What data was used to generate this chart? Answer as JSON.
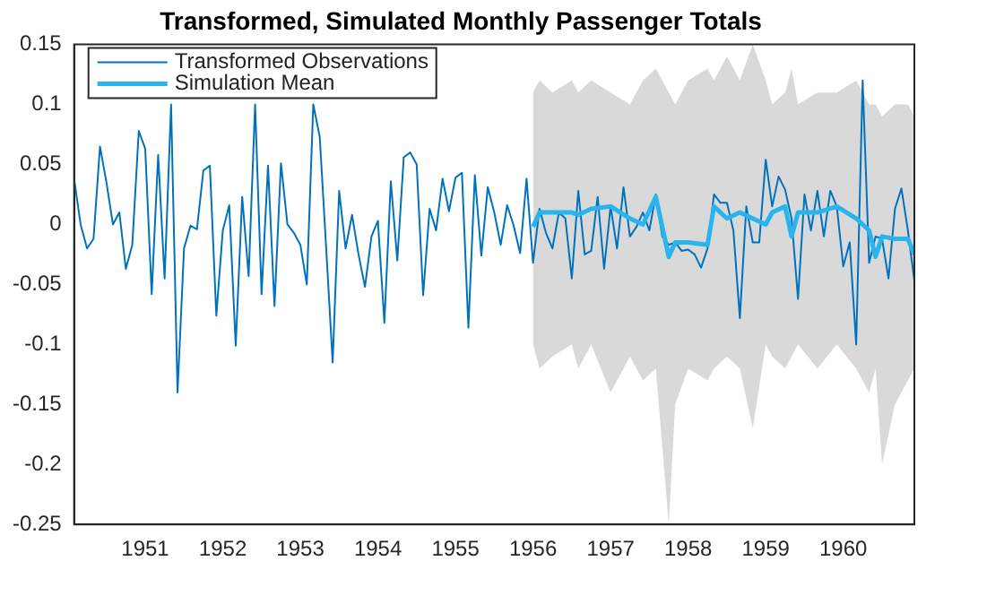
{
  "chart_data": {
    "type": "line",
    "title": "Transformed, Simulated Monthly Passenger Totals",
    "xlim": [
      "1950-02",
      "1960-12"
    ],
    "xticks": [
      "1951",
      "1952",
      "1953",
      "1954",
      "1955",
      "1956",
      "1957",
      "1958",
      "1959",
      "1960"
    ],
    "ylim": [
      -0.25,
      0.15
    ],
    "yticks": [
      -0.25,
      -0.2,
      -0.15,
      -0.1,
      -0.05,
      0,
      0.05,
      0.1,
      0.15
    ],
    "grid": false,
    "legend": "top left",
    "series": [
      {
        "name": "Transformed Observations",
        "color": "#0072bd",
        "x": [
          "1950-02",
          "1950-03",
          "1950-04",
          "1950-05",
          "1950-06",
          "1950-07",
          "1950-08",
          "1950-09",
          "1950-10",
          "1950-11",
          "1950-12",
          "1951-01",
          "1951-02",
          "1951-03",
          "1951-04",
          "1951-05",
          "1951-06",
          "1951-07",
          "1951-08",
          "1951-09",
          "1951-10",
          "1951-11",
          "1951-12",
          "1952-01",
          "1952-02",
          "1952-03",
          "1952-04",
          "1952-05",
          "1952-06",
          "1952-07",
          "1952-08",
          "1952-09",
          "1952-10",
          "1952-11",
          "1952-12",
          "1953-01",
          "1953-02",
          "1953-03",
          "1953-04",
          "1953-05",
          "1953-06",
          "1953-07",
          "1953-08",
          "1953-09",
          "1953-10",
          "1953-11",
          "1953-12",
          "1954-01",
          "1954-02",
          "1954-03",
          "1954-04",
          "1954-05",
          "1954-06",
          "1954-07",
          "1954-08",
          "1954-09",
          "1954-10",
          "1954-11",
          "1954-12",
          "1955-01",
          "1955-02",
          "1955-03",
          "1955-04",
          "1955-05",
          "1955-06",
          "1955-07",
          "1955-08",
          "1955-09",
          "1955-10",
          "1955-11",
          "1955-12",
          "1956-01",
          "1956-02",
          "1956-03",
          "1956-04",
          "1956-05",
          "1956-06",
          "1956-07",
          "1956-08",
          "1956-09",
          "1956-10",
          "1956-11",
          "1956-12",
          "1957-01",
          "1957-02",
          "1957-03",
          "1957-04",
          "1957-05",
          "1957-06",
          "1957-07",
          "1957-08",
          "1957-09",
          "1957-10",
          "1957-11",
          "1957-12",
          "1958-01",
          "1958-02",
          "1958-03",
          "1958-04",
          "1958-05",
          "1958-06",
          "1958-07",
          "1958-08",
          "1958-09",
          "1958-10",
          "1958-11",
          "1958-12",
          "1959-01",
          "1959-02",
          "1959-03",
          "1959-04",
          "1959-05",
          "1959-06",
          "1959-07",
          "1959-08",
          "1959-09",
          "1959-10",
          "1959-11",
          "1959-12",
          "1960-01",
          "1960-02",
          "1960-03",
          "1960-04",
          "1960-05",
          "1960-06",
          "1960-07",
          "1960-08",
          "1960-09",
          "1960-10",
          "1960-11",
          "1960-12"
        ],
        "values": [
          0.038,
          0,
          -0.02,
          -0.012,
          0.065,
          0.035,
          0,
          0.01,
          -0.037,
          -0.017,
          0.078,
          0.063,
          -0.058,
          0.058,
          -0.045,
          0.1,
          -0.14,
          -0.02,
          -0.001,
          -0.004,
          0.045,
          0.049,
          -0.076,
          -0.005,
          0.016,
          -0.101,
          0.023,
          -0.043,
          0.1,
          -0.058,
          0.049,
          -0.068,
          0.051,
          0,
          -0.007,
          -0.017,
          -0.05,
          0.1,
          0.073,
          -0.02,
          -0.115,
          0.028,
          -0.02,
          0.008,
          -0.025,
          -0.052,
          -0.01,
          0.003,
          -0.082,
          0.036,
          -0.03,
          0.056,
          0.06,
          0.05,
          -0.059,
          0.013,
          -0.005,
          0.038,
          0.011,
          0.039,
          0.043,
          -0.086,
          0.041,
          -0.026,
          0.031,
          0.01,
          -0.017,
          0.016,
          -0.001,
          -0.024,
          0.038,
          -0.032,
          0.013,
          -0.007,
          -0.02,
          0.01,
          0.005,
          -0.045,
          0.028,
          -0.025,
          -0.022,
          0.023,
          -0.037,
          0.015,
          -0.02,
          0.031,
          -0.01,
          -0.002,
          0.01,
          -0.005,
          0.025,
          -0.01,
          -0.017,
          -0.015,
          -0.022,
          -0.021,
          -0.025,
          -0.036,
          -0.02,
          0.025,
          0.018,
          0.018,
          -0.005,
          -0.078,
          0.015,
          -0.015,
          -0.015,
          0.054,
          0.015,
          0.04,
          0.029,
          0.005,
          -0.062,
          0.025,
          -0.005,
          0.028,
          -0.01,
          0.028,
          0.015,
          -0.035,
          -0.015,
          -0.1,
          0.12,
          -0.032,
          -0.01,
          -0.012,
          -0.045,
          0.013,
          0.03,
          -0.005,
          -0.047
        ]
      },
      {
        "name": "Simulation Mean",
        "color": "#28b4ed",
        "x": [
          "1956-01",
          "1956-02",
          "1956-04",
          "1956-07",
          "1956-08",
          "1956-10",
          "1957-01",
          "1957-04",
          "1957-06",
          "1957-08",
          "1957-10",
          "1957-11",
          "1958-01",
          "1958-04",
          "1958-05",
          "1958-07",
          "1958-09",
          "1958-11",
          "1959-01",
          "1959-02",
          "1959-04",
          "1959-05",
          "1959-06",
          "1959-09",
          "1959-12",
          "1960-03",
          "1960-05",
          "1960-06",
          "1960-07",
          "1960-09",
          "1960-11",
          "1960-12"
        ],
        "values": [
          -0.002,
          0.01,
          0.01,
          0.01,
          0.008,
          0.013,
          0.015,
          0.005,
          0,
          0.023,
          -0.027,
          -0.015,
          -0.015,
          -0.017,
          0.015,
          0.005,
          0.01,
          0.005,
          0,
          0.01,
          0.015,
          -0.01,
          0.01,
          0.01,
          0.015,
          0.005,
          -0.005,
          -0.027,
          -0.01,
          -0.012,
          -0.012,
          -0.025
        ],
        "upper": [
          0.11,
          0.12,
          0.11,
          0.12,
          0.11,
          0.12,
          0.11,
          0.1,
          0.12,
          0.13,
          0.11,
          0.1,
          0.12,
          0.13,
          0.12,
          0.14,
          0.12,
          0.15,
          0.12,
          0.1,
          0.11,
          0.13,
          0.1,
          0.11,
          0.11,
          0.12,
          0.1,
          0.1,
          0.09,
          0.1,
          0.1,
          0.09
        ],
        "lower": [
          -0.1,
          -0.12,
          -0.11,
          -0.1,
          -0.12,
          -0.1,
          -0.14,
          -0.11,
          -0.13,
          -0.12,
          -0.25,
          -0.15,
          -0.12,
          -0.13,
          -0.12,
          -0.11,
          -0.12,
          -0.17,
          -0.1,
          -0.11,
          -0.12,
          -0.11,
          -0.1,
          -0.12,
          -0.1,
          -0.12,
          -0.14,
          -0.12,
          -0.2,
          -0.15,
          -0.13,
          -0.12
        ]
      }
    ]
  }
}
